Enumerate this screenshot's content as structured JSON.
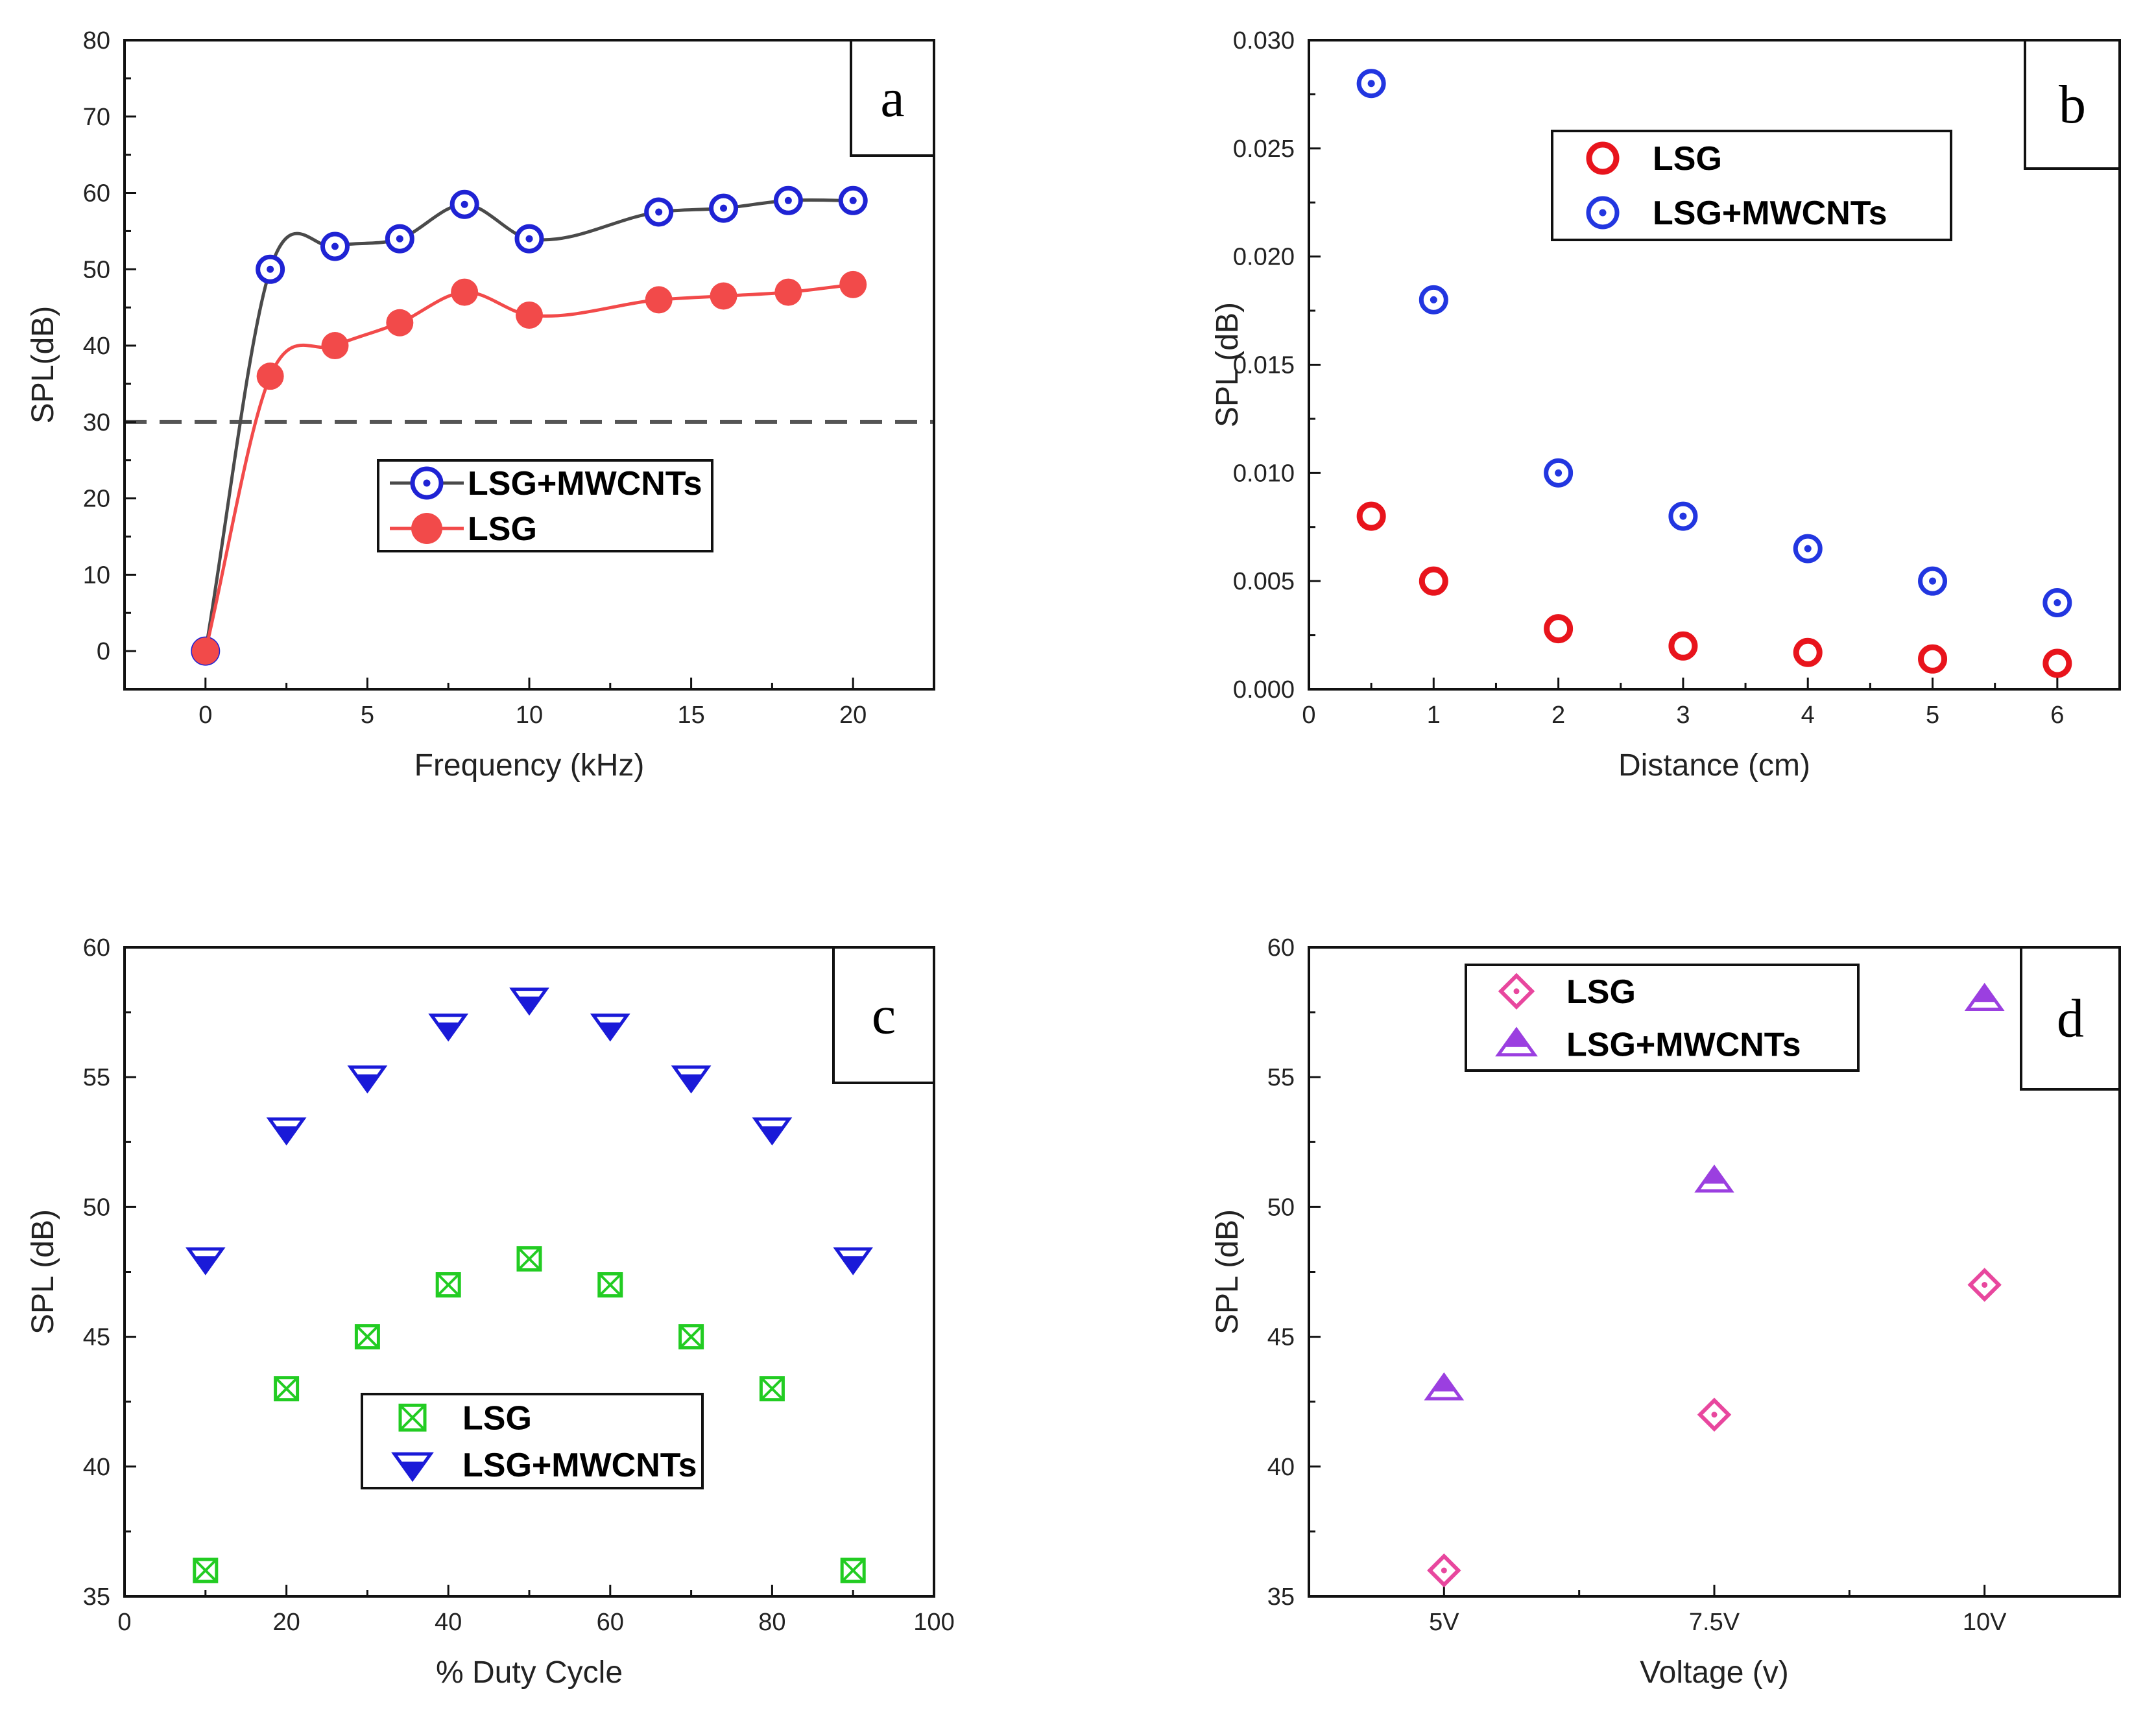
{
  "figure": {
    "panels": [
      "a",
      "b",
      "c",
      "d"
    ]
  },
  "chart_data": [
    {
      "id": "a",
      "type": "line",
      "panel_letter": "a",
      "title": "",
      "xlabel": "Frequency (kHz)",
      "ylabel": "SPL(dB)",
      "xlim": [
        -2.5,
        22.5
      ],
      "ylim": [
        -5,
        80
      ],
      "xticks": [
        0,
        5,
        10,
        15,
        20
      ],
      "yticks": [
        0,
        10,
        20,
        30,
        40,
        50,
        60,
        70,
        80
      ],
      "reference_line": {
        "y": 30,
        "style": "dashed"
      },
      "legend_position": "center",
      "series": [
        {
          "name": "LSG+MWCNTs",
          "color": "#1f23d4",
          "line_color": "#4a4a4a",
          "marker": "circle-dot",
          "x": [
            0,
            2,
            4,
            6,
            8,
            10,
            14,
            16,
            18,
            20
          ],
          "y": [
            0,
            50,
            53,
            54,
            58.5,
            54,
            57.5,
            58,
            59,
            59
          ]
        },
        {
          "name": "LSG",
          "color": "#f24a4a",
          "line_color": "#f24a4a",
          "marker": "filled-circle",
          "x": [
            0,
            2,
            4,
            6,
            8,
            10,
            14,
            16,
            18,
            20
          ],
          "y": [
            0,
            36,
            40,
            43,
            47,
            44,
            46,
            46.5,
            47,
            48
          ]
        }
      ]
    },
    {
      "id": "b",
      "type": "scatter",
      "panel_letter": "b",
      "title": "",
      "xlabel": "Distance (cm)",
      "ylabel": "SPL (dB)",
      "xlim": [
        0,
        6.5
      ],
      "ylim": [
        0,
        0.03
      ],
      "xticks": [
        0,
        1,
        2,
        3,
        4,
        5,
        6
      ],
      "yticks": [
        "0.000",
        "0.005",
        "0.010",
        "0.015",
        "0.020",
        "0.025",
        "0.030"
      ],
      "legend_position": "upper-center",
      "series": [
        {
          "name": "LSG",
          "color": "#e8141c",
          "marker": "open-circle",
          "x": [
            0.5,
            1,
            2,
            3,
            4,
            5,
            6
          ],
          "y": [
            0.008,
            0.005,
            0.0028,
            0.002,
            0.0017,
            0.0014,
            0.0012
          ]
        },
        {
          "name": "LSG+MWCNTs",
          "color": "#2236e0",
          "marker": "circle-dot",
          "x": [
            0.5,
            1,
            2,
            3,
            4,
            5,
            6
          ],
          "y": [
            0.028,
            0.018,
            0.01,
            0.008,
            0.0065,
            0.005,
            0.004
          ]
        }
      ]
    },
    {
      "id": "c",
      "type": "scatter",
      "panel_letter": "c",
      "title": "",
      "xlabel": "% Duty Cycle",
      "ylabel": "SPL (dB)",
      "xlim": [
        0,
        100
      ],
      "ylim": [
        35,
        60
      ],
      "xticks": [
        0,
        20,
        40,
        60,
        80,
        100
      ],
      "yticks": [
        35,
        40,
        45,
        50,
        55,
        60
      ],
      "legend_position": "lower-center",
      "series": [
        {
          "name": "LSG",
          "color": "#22cc22",
          "marker": "boxed-x",
          "x": [
            10,
            20,
            30,
            40,
            50,
            60,
            70,
            80,
            90
          ],
          "y": [
            36,
            43,
            45,
            47,
            48,
            47,
            45,
            43,
            36
          ]
        },
        {
          "name": "LSG+MWCNTs",
          "color": "#1a1ad8",
          "marker": "half-filled-down-triangle",
          "x": [
            10,
            20,
            30,
            40,
            50,
            60,
            70,
            80,
            90
          ],
          "y": [
            48,
            53,
            55,
            57,
            58,
            57,
            55,
            53,
            48
          ]
        }
      ]
    },
    {
      "id": "d",
      "type": "scatter",
      "panel_letter": "d",
      "title": "",
      "xlabel": "Voltage (v)",
      "ylabel": "SPL (dB)",
      "xlim": [
        0,
        3
      ],
      "ylim": [
        35,
        60
      ],
      "categories": [
        "5V",
        "7.5V",
        "10V"
      ],
      "yticks": [
        35,
        40,
        45,
        50,
        55,
        60
      ],
      "legend_position": "top-center",
      "series": [
        {
          "name": "LSG",
          "color": "#e8479e",
          "marker": "diamond-dot",
          "values": [
            36,
            42,
            47
          ]
        },
        {
          "name": "LSG+MWCNTs",
          "color": "#9b3fe0",
          "marker": "half-filled-up-triangle",
          "values": [
            43,
            51,
            58
          ]
        }
      ]
    }
  ]
}
